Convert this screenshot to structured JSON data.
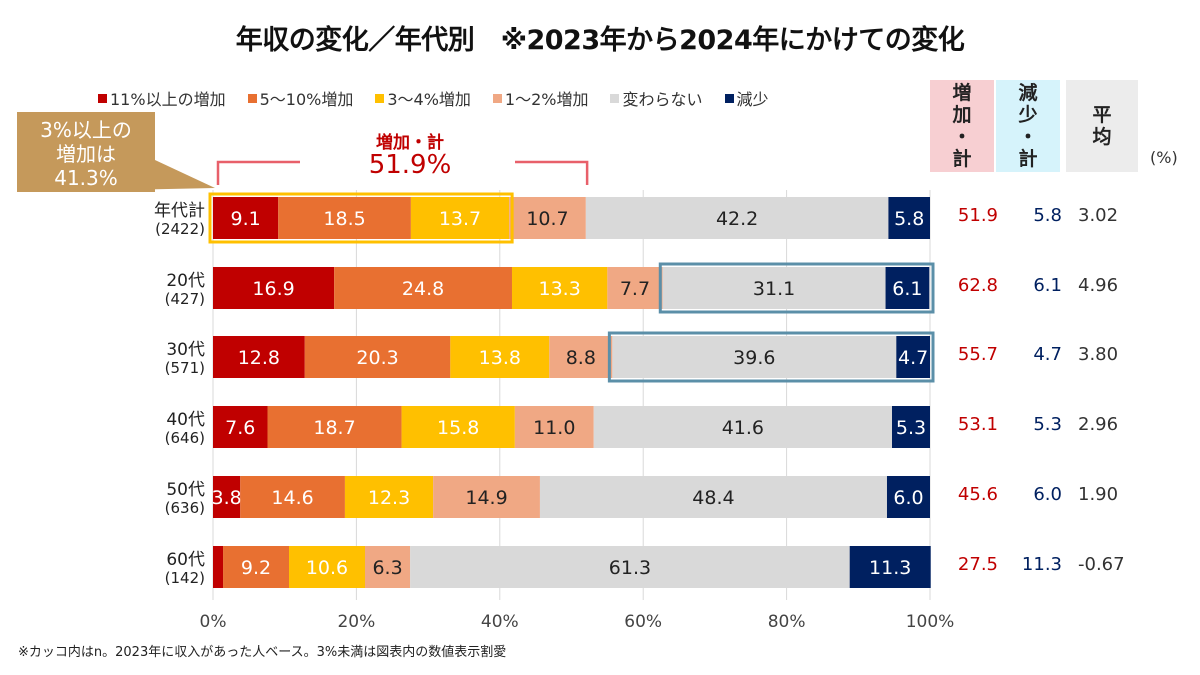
{
  "title": "年収の変化／年代別　※2023年から2024年にかけての変化",
  "legend": [
    {
      "label": "11%以上の増加",
      "color": "#c00000"
    },
    {
      "label": "5～10%増加",
      "color": "#e87031"
    },
    {
      "label": "3～4%増加",
      "color": "#ffc000"
    },
    {
      "label": "1～2%増加",
      "color": "#f0a884"
    },
    {
      "label": "変わらない",
      "color": "#d9d9d9"
    },
    {
      "label": "減少",
      "color": "#002060"
    }
  ],
  "columns": {
    "increase_total": {
      "lines": [
        "増",
        "加",
        "・",
        "計"
      ],
      "bg": "#f7cfd2"
    },
    "decrease_total": {
      "lines": [
        "減",
        "少",
        "・",
        "計"
      ],
      "bg": "#d6f3fb"
    },
    "average": {
      "lines": [
        "平",
        "均"
      ],
      "bg": "#ececec"
    },
    "unit": "(%)"
  },
  "callout": {
    "lines": [
      "3%以上の",
      "増加は",
      "41.3%"
    ]
  },
  "bracket": {
    "title": "増加・計",
    "value": "51.9%"
  },
  "footnote": "※カッコ内はn。2023年に収入があった人ベース。3%未満は図表内の数値表示割愛",
  "chart_data": {
    "type": "bar",
    "orientation": "horizontal-stacked-100",
    "title": "年収の変化／年代別　※2023年から2024年にかけての変化",
    "xlabel": "",
    "ylabel": "",
    "xlim": [
      0,
      100
    ],
    "x_ticks": [
      "0%",
      "20%",
      "40%",
      "60%",
      "80%",
      "100%"
    ],
    "grid": true,
    "legend_position": "top",
    "categories": [
      {
        "label": "年代計",
        "n": "(2422)"
      },
      {
        "label": "20代",
        "n": "(427)"
      },
      {
        "label": "30代",
        "n": "(571)"
      },
      {
        "label": "40代",
        "n": "(646)"
      },
      {
        "label": "50代",
        "n": "(636)"
      },
      {
        "label": "60代",
        "n": "(142)"
      }
    ],
    "series": [
      {
        "name": "11%以上の増加",
        "color": "#c00000",
        "text_color": "#ffffff",
        "values": [
          9.1,
          16.9,
          12.8,
          7.6,
          3.8,
          1.4
        ],
        "labels": [
          "9.1",
          "16.9",
          "12.8",
          "7.6",
          "3.8",
          ""
        ]
      },
      {
        "name": "5～10%増加",
        "color": "#e87031",
        "text_color": "#ffffff",
        "values": [
          18.5,
          24.8,
          20.3,
          18.7,
          14.6,
          9.2
        ],
        "labels": [
          "18.5",
          "24.8",
          "20.3",
          "18.7",
          "14.6",
          "9.2"
        ]
      },
      {
        "name": "3～4%増加",
        "color": "#ffc000",
        "text_color": "#ffffff",
        "values": [
          13.7,
          13.3,
          13.8,
          15.8,
          12.3,
          10.6
        ],
        "labels": [
          "13.7",
          "13.3",
          "13.8",
          "15.8",
          "12.3",
          "10.6"
        ]
      },
      {
        "name": "1～2%増加",
        "color": "#f0a884",
        "text_color": "#222222",
        "values": [
          10.7,
          7.7,
          8.8,
          11.0,
          14.9,
          6.3
        ],
        "labels": [
          "10.7",
          "7.7",
          "8.8",
          "11.0",
          "14.9",
          "6.3"
        ]
      },
      {
        "name": "変わらない",
        "color": "#d9d9d9",
        "text_color": "#222222",
        "values": [
          42.2,
          31.1,
          39.6,
          41.6,
          48.4,
          61.3
        ],
        "labels": [
          "42.2",
          "31.1",
          "39.6",
          "41.6",
          "48.4",
          "61.3"
        ]
      },
      {
        "name": "減少",
        "color": "#002060",
        "text_color": "#ffffff",
        "values": [
          5.8,
          6.1,
          4.7,
          5.3,
          6.0,
          11.3
        ],
        "labels": [
          "5.8",
          "6.1",
          "4.7",
          "5.3",
          "6.0",
          "11.3"
        ]
      }
    ],
    "totals": {
      "increase_total": [
        "51.9",
        "62.8",
        "55.7",
        "53.1",
        "45.6",
        "27.5"
      ],
      "decrease_total": [
        "5.8",
        "6.1",
        "4.7",
        "5.3",
        "6.0",
        "11.3"
      ],
      "average": [
        "3.02",
        "4.96",
        "3.80",
        "2.96",
        "1.90",
        "-0.67"
      ]
    },
    "totals_colors": {
      "increase_total": "#c00000",
      "decrease_total": "#002060",
      "average": "#333333"
    },
    "annotations": [
      {
        "text": "増加・計 51.9%",
        "type": "bracket",
        "row": "年代計",
        "from_pct": 0,
        "to_pct": 51.9
      },
      {
        "text": "3%以上の増加は41.3%",
        "type": "highlight-box",
        "row": "年代計",
        "from_pct": 0,
        "to_pct": 41.3,
        "color": "#ffc000"
      },
      {
        "type": "highlight-box",
        "row": "20代",
        "from_pct": 62.8,
        "to_pct": 100,
        "color": "#5b8fa8"
      },
      {
        "type": "highlight-box",
        "row": "30代",
        "from_pct": 55.7,
        "to_pct": 100,
        "color": "#5b8fa8"
      }
    ]
  }
}
